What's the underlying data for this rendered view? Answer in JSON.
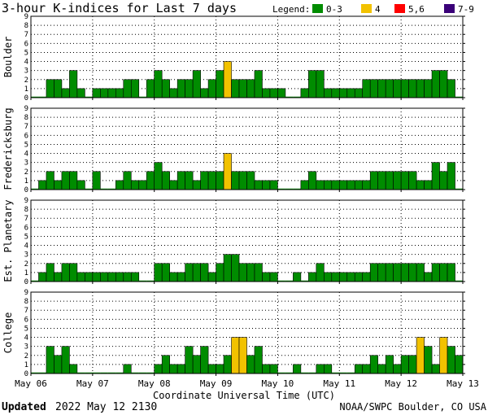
{
  "chart_data": {
    "type": "bar",
    "title": "3-hour K-indices for Last 7 days",
    "legend": {
      "label": "Legend:",
      "entries": [
        {
          "label": "0-3",
          "color": "#008c00"
        },
        {
          "label": "4",
          "color": "#f2c200"
        },
        {
          "label": "5,6",
          "color": "#ff0000"
        },
        {
          "label": "7-9",
          "color": "#3a0078"
        }
      ]
    },
    "ylim": [
      0,
      9
    ],
    "yticks": [
      "0",
      "1",
      "2",
      "3",
      "4",
      "5",
      "6",
      "7",
      "8",
      "9"
    ],
    "xlabel": "Coordinate Universal Time (UTC)",
    "x_ticks": [
      "May 06",
      "May 07",
      "May 08",
      "May 09",
      "May 10",
      "May 11",
      "May 12",
      "May 13"
    ],
    "intervals_per_day": 8,
    "panels": [
      {
        "name": "Boulder",
        "values": [
          0,
          0,
          2,
          2,
          1,
          3,
          1,
          0,
          1,
          1,
          1,
          1,
          2,
          2,
          0,
          2,
          3,
          2,
          1,
          2,
          2,
          3,
          1,
          2,
          3,
          4,
          2,
          2,
          2,
          3,
          1,
          1,
          1,
          0,
          0,
          1,
          3,
          3,
          1,
          1,
          1,
          1,
          1,
          2,
          2,
          2,
          2,
          2,
          2,
          2,
          2,
          2,
          3,
          3,
          2,
          0
        ]
      },
      {
        "name": "Fredericksburg",
        "values": [
          0,
          1,
          2,
          1,
          2,
          2,
          1,
          0,
          2,
          0,
          0,
          1,
          2,
          1,
          1,
          2,
          3,
          2,
          1,
          2,
          2,
          1,
          2,
          2,
          2,
          4,
          2,
          2,
          2,
          1,
          1,
          1,
          0,
          0,
          0,
          1,
          2,
          1,
          1,
          1,
          1,
          1,
          1,
          1,
          2,
          2,
          2,
          2,
          2,
          2,
          1,
          1,
          3,
          2,
          3,
          0
        ]
      },
      {
        "name": "Est. Planetary",
        "values": [
          0,
          1,
          2,
          1,
          2,
          2,
          1,
          1,
          1,
          1,
          1,
          1,
          1,
          1,
          0,
          0,
          2,
          2,
          1,
          1,
          2,
          2,
          2,
          1,
          2,
          3,
          3,
          2,
          2,
          2,
          1,
          1,
          0,
          0,
          1,
          0,
          1,
          2,
          1,
          1,
          1,
          1,
          1,
          1,
          2,
          2,
          2,
          2,
          2,
          2,
          2,
          1,
          2,
          2,
          2,
          0
        ]
      },
      {
        "name": "College",
        "values": [
          0,
          0,
          3,
          2,
          3,
          1,
          0,
          0,
          0,
          0,
          0,
          0,
          1,
          0,
          0,
          0,
          1,
          2,
          1,
          1,
          3,
          2,
          3,
          1,
          1,
          2,
          4,
          4,
          2,
          3,
          1,
          1,
          0,
          0,
          1,
          0,
          0,
          1,
          1,
          0,
          0,
          0,
          1,
          1,
          2,
          1,
          2,
          1,
          2,
          2,
          4,
          3,
          1,
          4,
          3,
          2
        ]
      }
    ],
    "footer": {
      "updated_label": "Updated",
      "updated_value": "2022 May 12 2130",
      "credit": "NOAA/SWPC Boulder, CO USA"
    }
  }
}
